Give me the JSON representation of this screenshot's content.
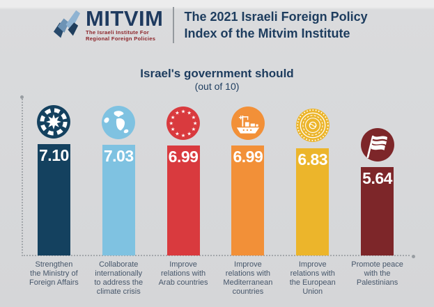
{
  "header": {
    "logo_text": "MITVIM",
    "logo_tagline_line1": "The Israeli Institute For",
    "logo_tagline_line2": "Regional Foreign Policies",
    "title_line1": "The 2021 Israeli Foreign Policy",
    "title_line2": "Index of the Mitvim Institute"
  },
  "chart_data": {
    "type": "bar",
    "title": "Israel's government should",
    "subtitle": "(out of 10)",
    "ylim": [
      0,
      10
    ],
    "grid": false,
    "legend": false,
    "categories": [
      "Strengthen the Ministry of Foreign Affairs",
      "Collaborate internationally to address the climate crisis",
      "Improve relations with Arab countries",
      "Improve relations with Mediterranean countries",
      "Improve relations with the European Union",
      "Promote peace with the Palestinians"
    ],
    "values": [
      7.1,
      7.03,
      6.99,
      6.99,
      6.83,
      5.64
    ],
    "pixels_per_unit": 22.6,
    "items": [
      {
        "label_lines": "Strengthen\nthe Ministry of\nForeign Affairs",
        "value": 7.1,
        "display": "7.10",
        "color": "#14415f",
        "icon": "ministry-emblem-icon"
      },
      {
        "label_lines": "Collaborate\ninternationally\nto address the\nclimate crisis",
        "value": 7.03,
        "display": "7.03",
        "color": "#7fc2e1",
        "icon": "globe-icon"
      },
      {
        "label_lines": "Improve\nrelations with\nArab countries",
        "value": 6.99,
        "display": "6.99",
        "color": "#d93a3e",
        "icon": "star-circle-icon"
      },
      {
        "label_lines": "Improve\nrelations with\nMediterranean\ncountries",
        "value": 6.99,
        "display": "6.99",
        "color": "#f29038",
        "icon": "ship-icon"
      },
      {
        "label_lines": "Improve\nrelations with\nthe European\nUnion",
        "value": 6.83,
        "display": "6.83",
        "color": "#ecb52b",
        "icon": "seal-icon"
      },
      {
        "label_lines": "Promote peace\nwith the\nPalestinians",
        "value": 5.64,
        "display": "5.64",
        "color": "#7d2629",
        "icon": "flag-icon"
      }
    ]
  },
  "colors": {
    "title_navy": "#1d3c5e",
    "tagline_red": "#8c2328",
    "axis_gray": "#a3a7ab",
    "background": "#d5d6d8"
  }
}
